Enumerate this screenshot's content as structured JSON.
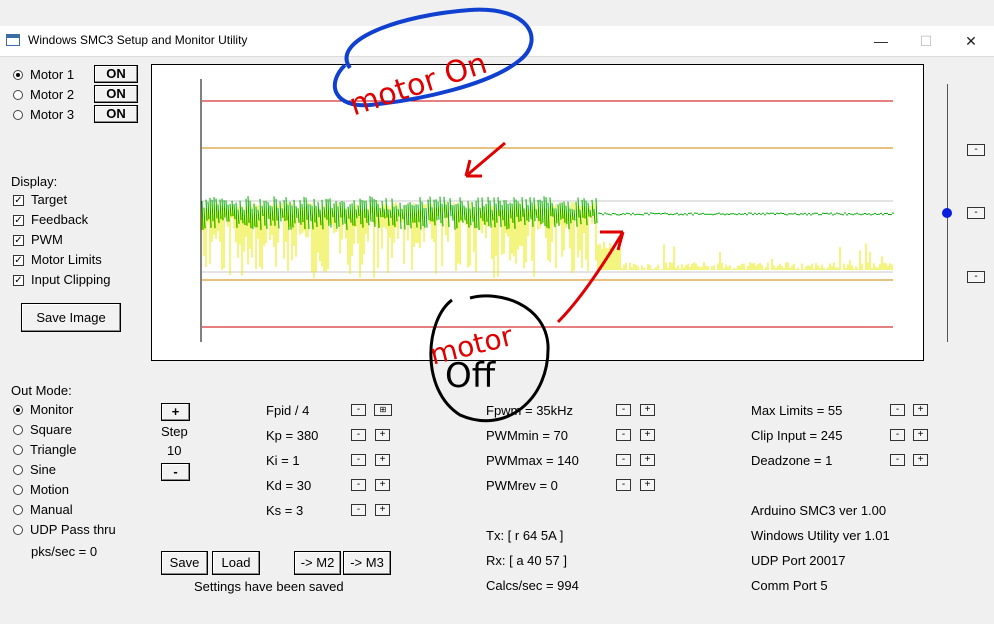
{
  "window": {
    "title": "Windows SMC3 Setup and Monitor Utility",
    "min": "—",
    "max": "☐",
    "close": "✕"
  },
  "motors": [
    {
      "label": "Motor 1",
      "button": "ON",
      "selected": true
    },
    {
      "label": "Motor 2",
      "button": "ON",
      "selected": false
    },
    {
      "label": "Motor 3",
      "button": "ON",
      "selected": false
    }
  ],
  "display": {
    "header": "Display:",
    "items": [
      "Target",
      "Feedback",
      "PWM",
      "Motor Limits",
      "Input Clipping"
    ],
    "save_image": "Save Image"
  },
  "out_mode": {
    "header": "Out Mode:",
    "options": [
      "Monitor",
      "Square",
      "Triangle",
      "Sine",
      "Motion",
      "Manual",
      "UDP Pass thru"
    ],
    "selected": "Monitor",
    "pks": "pks/sec = 0"
  },
  "step": {
    "plus": "+",
    "label": "Step",
    "value": "10",
    "minus": "-"
  },
  "pid": [
    "Fpid / 4",
    "Kp = 380",
    "Ki = 1",
    "Kd = 30",
    "Ks = 3"
  ],
  "pwm": [
    "Fpwm = 35kHz",
    "PWMmin = 70",
    "PWMmax = 140",
    "PWMrev = 0"
  ],
  "limits": [
    "Max Limits = 55",
    "Clip Input = 245",
    "Deadzone = 1"
  ],
  "comms": {
    "tx": "Tx: [ r 64 5A ]",
    "rx": "Rx: [ a 40 57 ]",
    "calcs": "Calcs/sec = 994"
  },
  "info": [
    "Arduino SMC3 ver 1.00",
    "Windows Utility ver 1.01",
    "UDP Port 20017",
    "Comm Port 5"
  ],
  "bottom": {
    "save": "Save",
    "load": "Load",
    "m2": "-> M2",
    "m3": "-> M3",
    "status": "Settings have been saved"
  },
  "annotations": {
    "top": "motor On",
    "bottom_1": "motor",
    "bottom_2": "Off"
  },
  "colors": {
    "limit": "#cc0000",
    "clip": "#d08000",
    "target": "#00aa00",
    "pwm": "#e8e800",
    "annot_blue": "#1040d0",
    "annot_red": "#e00000"
  }
}
